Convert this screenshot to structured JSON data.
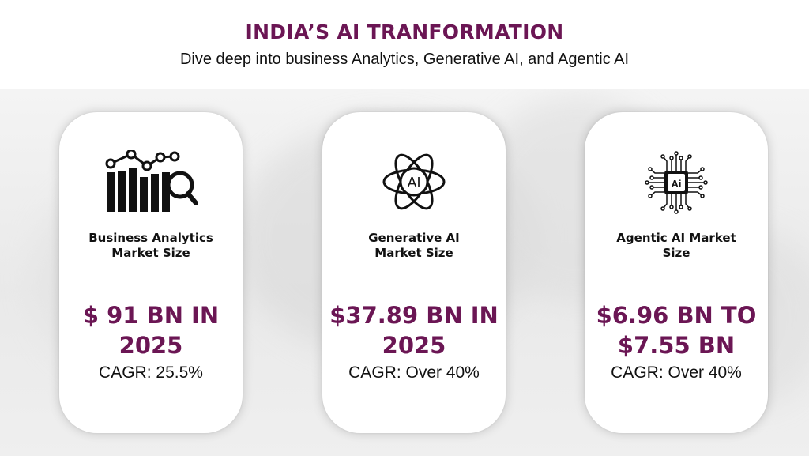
{
  "header": {
    "title": "INDIA’S AI TRANFORMATION",
    "subtitle": "Dive deep into business Analytics, Generative AI, and Agentic AI"
  },
  "colors": {
    "accent": "#6b1654",
    "text": "#111111",
    "card": "#ffffff"
  },
  "cards": [
    {
      "icon": "analytics-chart-magnifier-icon",
      "label_line1": "Business Analytics",
      "label_line2": "Market Size",
      "value_line1": "$ 91 BN IN",
      "value_line2": "2025",
      "cagr": "CAGR: 25.5%"
    },
    {
      "icon": "ai-atom-icon",
      "icon_text": "AI",
      "label_line1": "Generative AI",
      "label_line2": "Market Size",
      "value_line1": "$37.89 BN IN",
      "value_line2": "2025",
      "cagr": "CAGR: Over 40%"
    },
    {
      "icon": "ai-chip-icon",
      "icon_text": "Ai",
      "label_line1": "Agentic AI Market",
      "label_line2": "Size",
      "value_line1": "$6.96 BN TO",
      "value_line2": "$7.55 BN",
      "cagr": "CAGR: Over 40%"
    }
  ]
}
